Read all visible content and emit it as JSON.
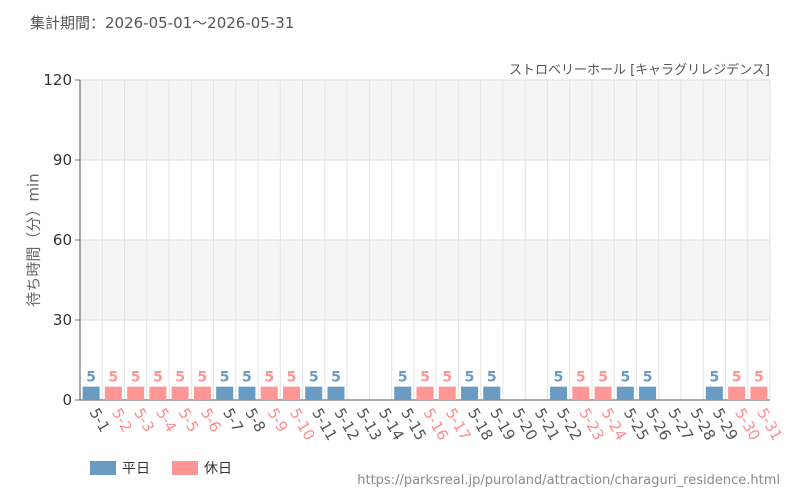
{
  "header": {
    "period": "集計期間：2026-05-01～2026-05-31",
    "attraction": "ストロベリーホール [キャラグリレジデンス]"
  },
  "footer": {
    "source": "https://parksreal.jp/puroland/attraction/charaguri_residence.html"
  },
  "legend": [
    {
      "label": "平日",
      "color": "#6a9bc3"
    },
    {
      "label": "休日",
      "color": "#ff9696"
    }
  ],
  "colors": {
    "weekday": "#6a9bc3",
    "holiday": "#ff9696",
    "weekday_text": "#555555",
    "holiday_text": "#ff8c8c"
  },
  "chart_data": {
    "type": "bar",
    "title": "",
    "xlabel": "",
    "ylabel": "待ち時間（分）min",
    "ylim": [
      0,
      120
    ],
    "yticks": [
      0,
      30,
      60,
      90,
      120
    ],
    "grid": true,
    "legend_position": "bottom-left",
    "categories": [
      "5-1",
      "5-2",
      "5-3",
      "5-4",
      "5-5",
      "5-6",
      "5-7",
      "5-8",
      "5-9",
      "5-10",
      "5-11",
      "5-12",
      "5-13",
      "5-14",
      "5-15",
      "5-16",
      "5-17",
      "5-18",
      "5-19",
      "5-20",
      "5-21",
      "5-22",
      "5-23",
      "5-24",
      "5-25",
      "5-26",
      "5-27",
      "5-28",
      "5-29",
      "5-30",
      "5-31"
    ],
    "day_type": [
      "平日",
      "休日",
      "休日",
      "休日",
      "休日",
      "休日",
      "平日",
      "平日",
      "休日",
      "休日",
      "平日",
      "平日",
      "平日",
      "平日",
      "平日",
      "休日",
      "休日",
      "平日",
      "平日",
      "平日",
      "平日",
      "平日",
      "休日",
      "休日",
      "平日",
      "平日",
      "平日",
      "平日",
      "平日",
      "休日",
      "休日"
    ],
    "values": [
      5,
      5,
      5,
      5,
      5,
      5,
      5,
      5,
      5,
      5,
      5,
      5,
      null,
      null,
      5,
      5,
      5,
      5,
      5,
      null,
      null,
      5,
      5,
      5,
      5,
      5,
      null,
      null,
      5,
      5,
      5
    ]
  }
}
